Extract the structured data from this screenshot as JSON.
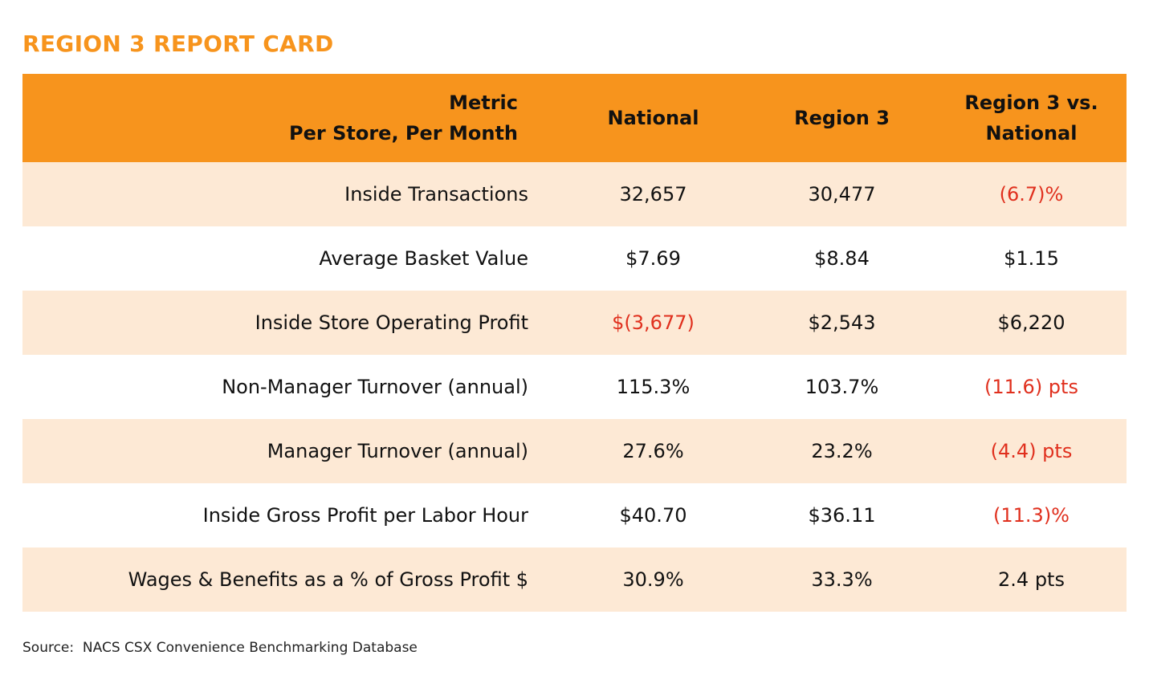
{
  "title": "REGION 3 REPORT CARD",
  "colors": {
    "title": "#f7941d",
    "header": "#f7941d",
    "stripe": "#fde9d5",
    "negative": "#e0301e"
  },
  "table": {
    "header": [
      [
        "Metric",
        "Per Store, Per Month"
      ],
      [
        "National"
      ],
      [
        "Region 3"
      ],
      [
        "Region 3 vs.",
        "National"
      ]
    ],
    "rows": [
      [
        "Inside Transactions",
        "32,657",
        "30,477",
        "(6.7)%"
      ],
      [
        "Average Basket Value",
        "$7.69",
        "$8.84",
        "$1.15"
      ],
      [
        "Inside Store Operating Profit",
        "$(3,677)",
        "$2,543",
        "$6,220"
      ],
      [
        "Non-Manager Turnover (annual)",
        "115.3%",
        "103.7%",
        "(11.6) pts"
      ],
      [
        "Manager Turnover (annual)",
        "27.6%",
        "23.2%",
        "(4.4) pts"
      ],
      [
        "Inside Gross Profit per Labor Hour",
        "$40.70",
        "$36.11",
        "(11.3)%"
      ],
      [
        "Wages & Benefits as a % of Gross Profit $",
        "30.9%",
        "33.3%",
        "2.4 pts"
      ]
    ]
  },
  "source": "Source:  NACS CSX Convenience Benchmarking Database"
}
